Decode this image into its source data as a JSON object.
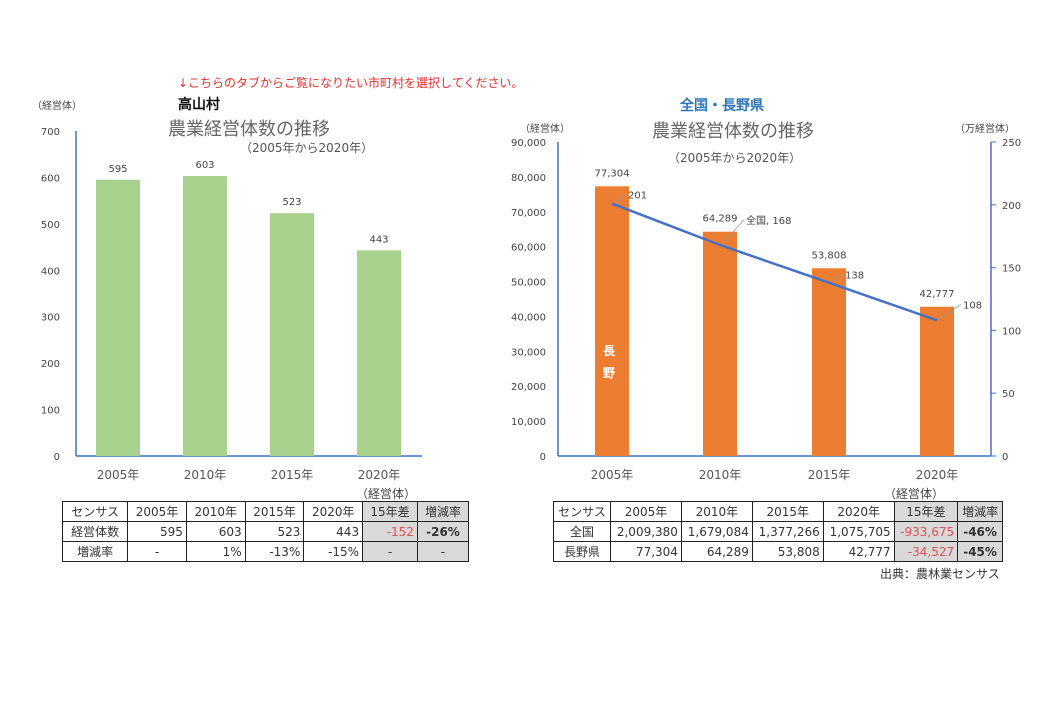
{
  "notice": "↓こちらのタブからご覧になりたい市町村を選択してください。",
  "source": "出典：農林業センサス",
  "chart_data": [
    {
      "type": "bar",
      "heading": "高山村",
      "title": "農業経営体数の推移",
      "subtitle": "（2005年から2020年）",
      "ylabel": "（経営体）",
      "categories": [
        "2005年",
        "2010年",
        "2015年",
        "2020年"
      ],
      "values": [
        595,
        603,
        523,
        443
      ],
      "data_labels": [
        "595",
        "603",
        "523",
        "443"
      ],
      "ylim": [
        0,
        700
      ],
      "yticks": [
        "0",
        "100",
        "200",
        "300",
        "400",
        "500",
        "600",
        "700"
      ],
      "x_unit_label": "（経営体）",
      "bar_color": "#a9d18e",
      "axis_color": "#4472c4"
    },
    {
      "type": "bar+line",
      "heading": "全国・長野県",
      "title": "農業経営体数の推移",
      "subtitle": "（2005年から2020年）",
      "ylabel": "（経営体）",
      "y2label": "（万経営体）",
      "categories": [
        "2005年",
        "2010年",
        "2015年",
        "2020年"
      ],
      "series": [
        {
          "name": "長野",
          "type": "bar",
          "axis": "left",
          "values": [
            77304,
            64289,
            53808,
            42777
          ],
          "data_labels": [
            "77,304",
            "64,289",
            "53,808",
            "42,777"
          ],
          "color": "#ed7d31"
        },
        {
          "name": "全国",
          "type": "line",
          "axis": "right",
          "values": [
            201,
            168,
            138,
            108
          ],
          "data_labels": [
            "201",
            "全国, 168",
            "138",
            "108"
          ],
          "color": "#4472c4"
        }
      ],
      "ylim": [
        0,
        90000
      ],
      "yticks": [
        "0",
        "10,000",
        "20,000",
        "30,000",
        "40,000",
        "50,000",
        "60,000",
        "70,000",
        "80,000",
        "90,000"
      ],
      "y2lim": [
        0,
        250
      ],
      "y2ticks": [
        "0",
        "50",
        "100",
        "150",
        "200",
        "250"
      ],
      "x_unit_label": "（経営体）",
      "heading_color": "#2e75b6"
    }
  ],
  "table_left": {
    "header": [
      "センサス",
      "2005年",
      "2010年",
      "2015年",
      "2020年",
      "15年差",
      "増減率"
    ],
    "rows": [
      [
        "経営体数",
        "595",
        "603",
        "523",
        "443",
        "-152",
        "-26%"
      ],
      [
        "増減率",
        "-",
        "1%",
        "-13%",
        "-15%",
        "-",
        "-"
      ]
    ]
  },
  "table_right": {
    "header": [
      "センサス",
      "2005年",
      "2010年",
      "2015年",
      "2020年",
      "15年差",
      "増減率"
    ],
    "rows": [
      [
        "全国",
        "2,009,380",
        "1,679,084",
        "1,377,266",
        "1,075,705",
        "-933,675",
        "-46%"
      ],
      [
        "長野県",
        "77,304",
        "64,289",
        "53,808",
        "42,777",
        "-34,527",
        "-45%"
      ]
    ]
  }
}
